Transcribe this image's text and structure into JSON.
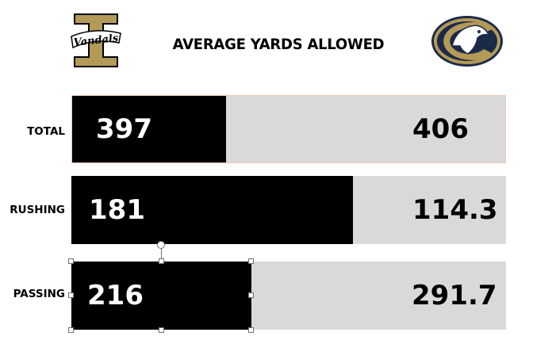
{
  "title": "AVERAGE YARDS ALLOWED",
  "logos": {
    "left": {
      "icon": "vandals-logo",
      "text": "Vandals"
    },
    "right": {
      "icon": "aggies-mustang-logo"
    }
  },
  "colors": {
    "left_team": "#000000",
    "right_team": "#d9d9d9",
    "logo_gold": "#b49a57",
    "logo_navy": "#1c2a4a"
  },
  "chart_data": {
    "type": "bar",
    "orientation": "horizontal-stacked",
    "title": "AVERAGE YARDS ALLOWED",
    "categories": [
      "TOTAL",
      "RUSHING",
      "PASSING"
    ],
    "series": [
      {
        "values": [
          397,
          181,
          216
        ],
        "labels": [
          "397",
          "181",
          "216"
        ]
      },
      {
        "values": [
          406,
          114.3,
          291.7
        ],
        "labels": [
          "406",
          "114.3",
          "291.7"
        ]
      }
    ],
    "grid": false,
    "legend": "none"
  }
}
